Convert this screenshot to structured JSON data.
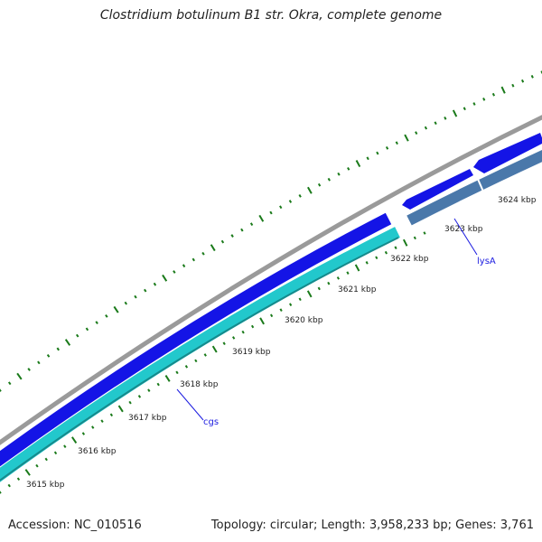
{
  "title": "Clostridium botulinum B1 str. Okra, complete genome",
  "accession": "Accession: NC_010516",
  "summary": "Topology: circular; Length: 3,958,233 bp; Genes: 3,761",
  "colors": {
    "backbone": "#8c8c8c",
    "forward_cds": "#1414e6",
    "reverse_cds_a": "#22c8cc",
    "reverse_cds_b": "#4a78aa",
    "gc_skew": "#1a7a1a",
    "gene_label": "#1c1ce0"
  },
  "ruler_labels": [
    "3615 kbp",
    "3616 kbp",
    "3617 kbp",
    "3618 kbp",
    "3619 kbp",
    "3620 kbp",
    "3621 kbp",
    "3622 kbp",
    "3623 kbp",
    "3624 kbp"
  ],
  "genes": [
    {
      "name": "cgs",
      "strand": "reverse"
    },
    {
      "name": "lysA",
      "strand": "reverse"
    }
  ]
}
